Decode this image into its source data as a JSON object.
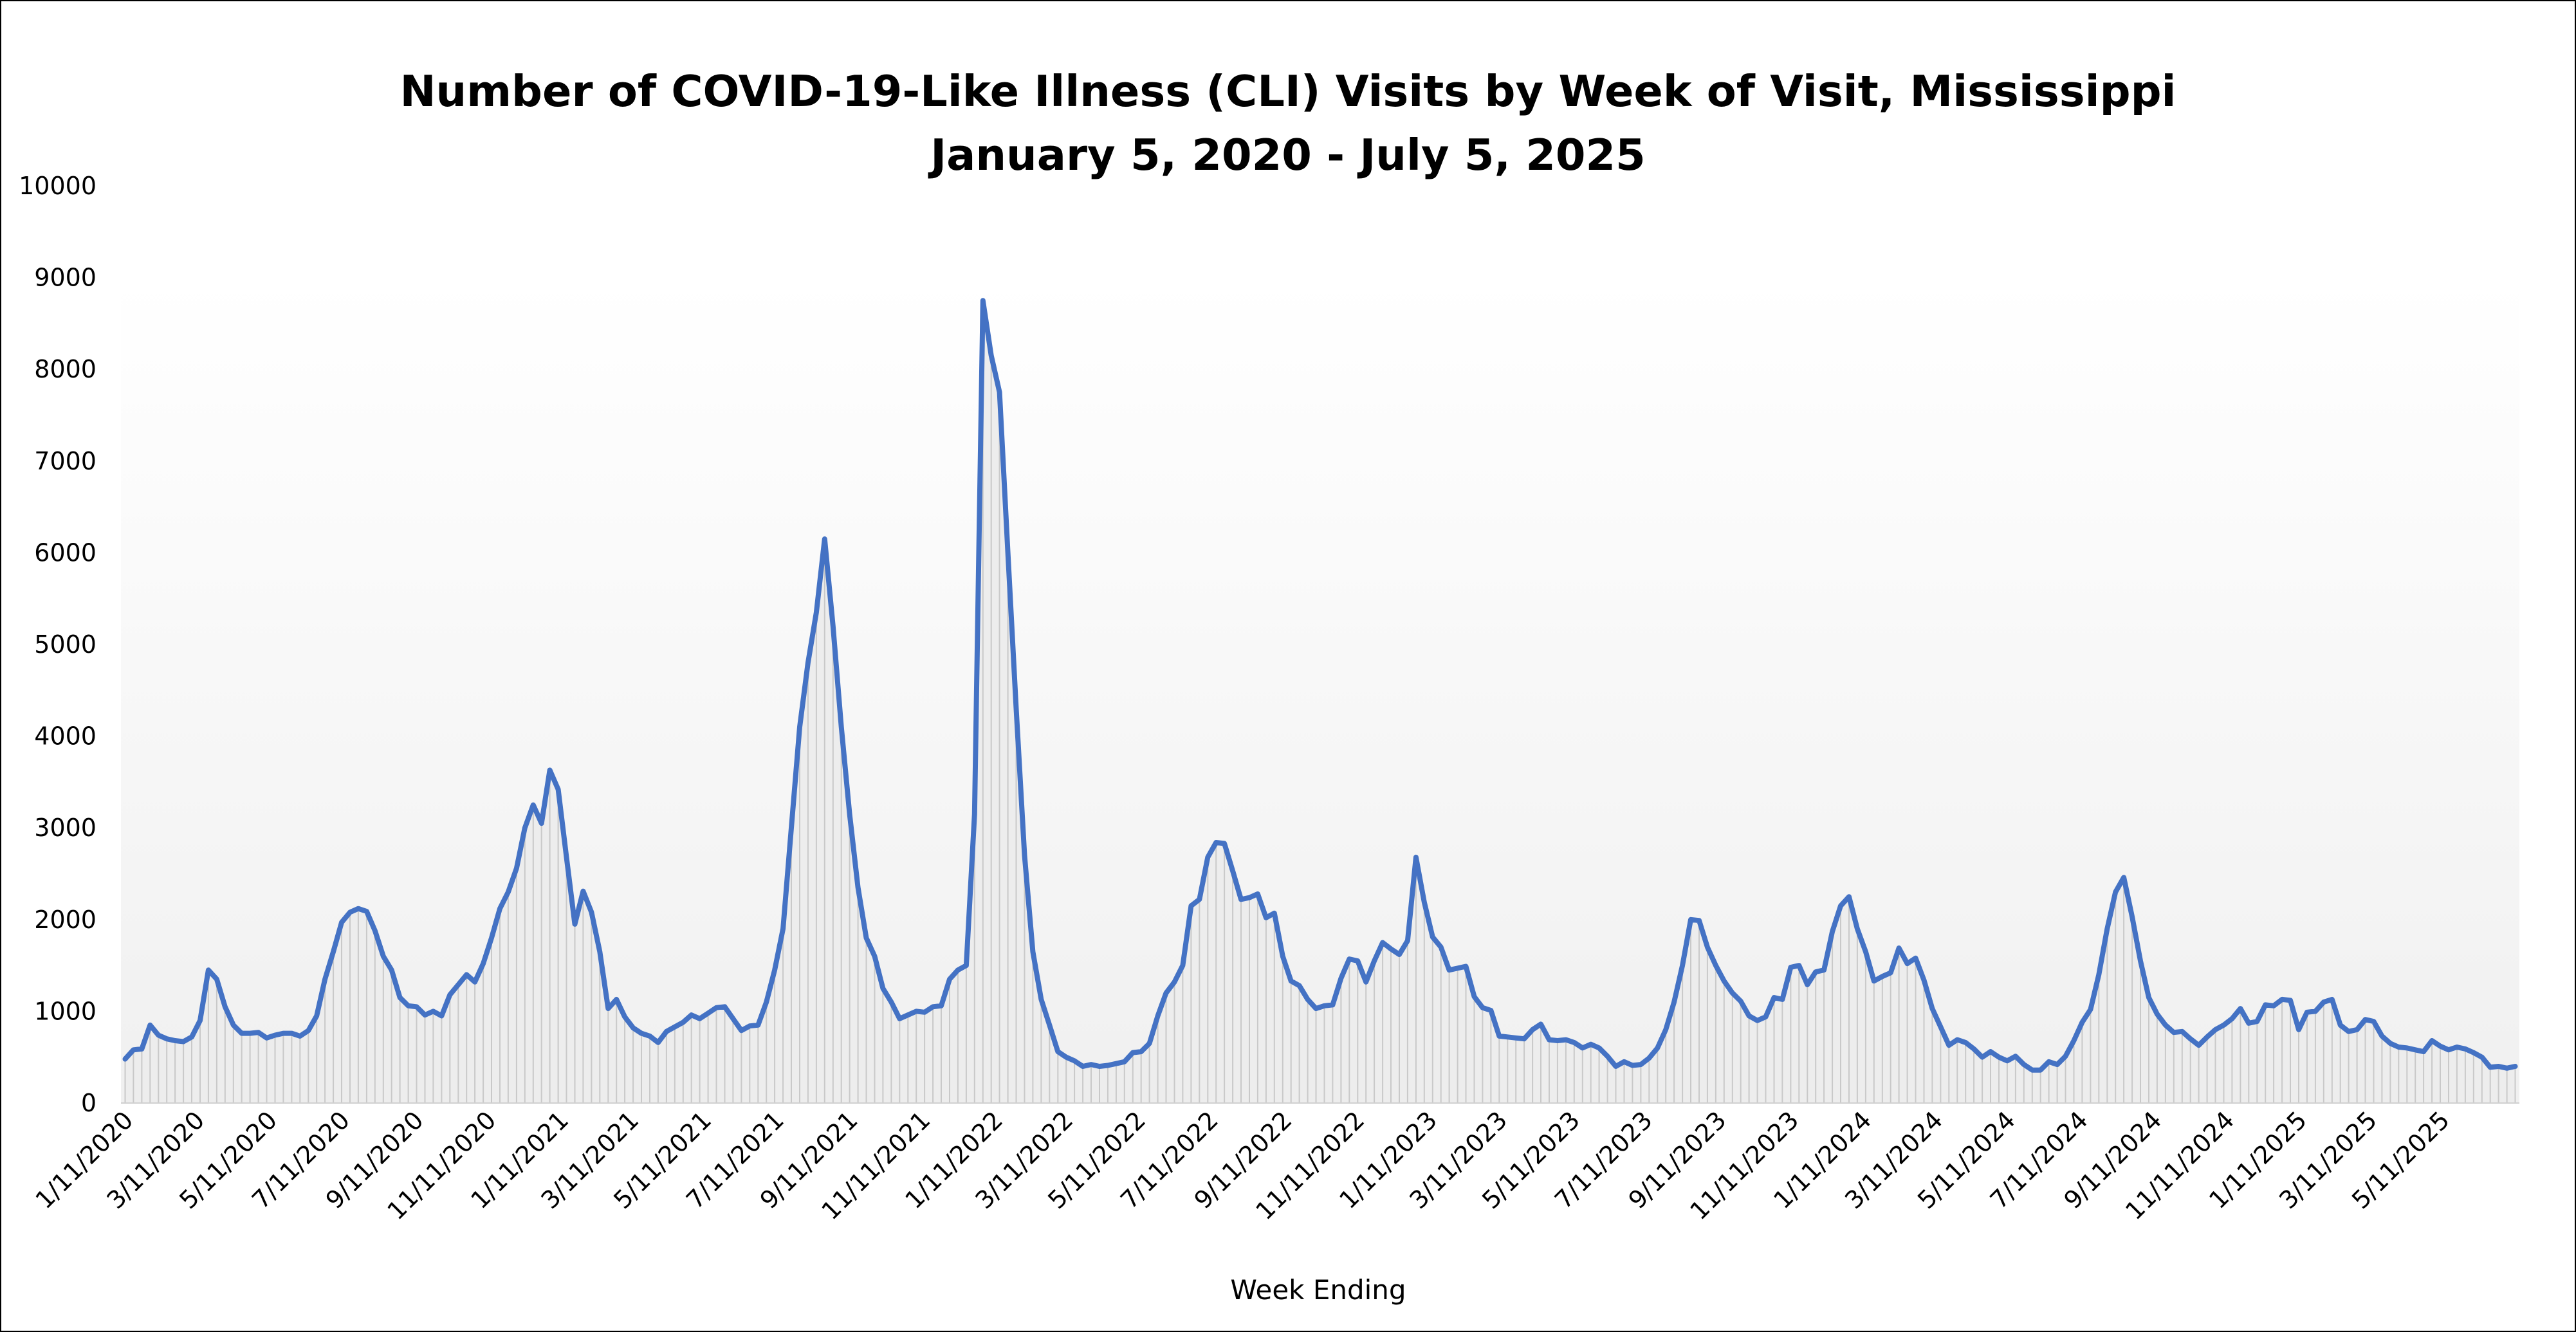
{
  "chart_data": {
    "type": "line",
    "title": "Number of COVID-19-Like Illness (CLI) Visits by Week of Visit, Mississippi",
    "subtitle": "January 5, 2020 - July 5, 2025",
    "xlabel": "Week Ending",
    "ylabel": "",
    "ylim": [
      0,
      10000
    ],
    "y_ticks": [
      "0",
      "1000",
      "2000",
      "3000",
      "4000",
      "5000",
      "6000",
      "7000",
      "8000",
      "9000",
      "10000"
    ],
    "x_tick_labels": [
      "1/11/2020",
      "3/11/2020",
      "5/11/2020",
      "7/11/2020",
      "9/11/2020",
      "11/11/2020",
      "1/11/2021",
      "3/11/2021",
      "5/11/2021",
      "7/11/2021",
      "9/11/2021",
      "11/11/2021",
      "1/11/2022",
      "3/11/2022",
      "5/11/2022",
      "7/11/2022",
      "9/11/2022",
      "11/11/2022",
      "1/11/2023",
      "3/11/2023",
      "5/11/2023",
      "7/11/2023",
      "9/11/2023",
      "11/11/2023",
      "1/11/2024",
      "3/11/2024",
      "5/11/2024",
      "7/11/2024",
      "9/11/2024",
      "11/11/2024",
      "1/11/2025",
      "3/11/2025",
      "5/11/2025"
    ],
    "x_start": "1/5/2020",
    "x_end": "7/5/2025",
    "line_color": "#4472C4",
    "area_fill": "#ededed",
    "grid": false,
    "legend": "none",
    "series": [
      {
        "values": [
          480,
          580,
          590,
          850,
          740,
          700,
          680,
          670,
          720,
          900,
          1450,
          1350,
          1050,
          850,
          760,
          760,
          770,
          710,
          740,
          760,
          760,
          730,
          790,
          950,
          1350,
          1650,
          1970,
          2080,
          2120,
          2090,
          1880,
          1600,
          1450,
          1150,
          1060,
          1050,
          960,
          1000,
          950,
          1180,
          1290,
          1400,
          1320,
          1520,
          1800,
          2120,
          2300,
          2560,
          3000,
          3250,
          3050,
          3630,
          3420,
          2680,
          1950,
          2310,
          2080,
          1650,
          1030,
          1130,
          940,
          820,
          760,
          730,
          660,
          780,
          830,
          880,
          960,
          920,
          980,
          1040,
          1050,
          920,
          790,
          840,
          850,
          1100,
          1450,
          1900,
          3000,
          4100,
          4800,
          5350,
          6150,
          5200,
          4100,
          3150,
          2350,
          1800,
          1600,
          1250,
          1100,
          920,
          960,
          1000,
          990,
          1050,
          1060,
          1350,
          1450,
          1500,
          3150,
          8750,
          8150,
          7750,
          6000,
          4300,
          2700,
          1650,
          1130,
          850,
          560,
          500,
          460,
          400,
          420,
          400,
          410,
          430,
          450,
          550,
          560,
          650,
          950,
          1200,
          1320,
          1500,
          2150,
          2220,
          2680,
          2840,
          2830,
          2530,
          2220,
          2240,
          2280,
          2020,
          2070,
          1600,
          1330,
          1280,
          1130,
          1030,
          1060,
          1070,
          1360,
          1570,
          1550,
          1320,
          1550,
          1750,
          1680,
          1620,
          1770,
          2680,
          2190,
          1810,
          1700,
          1450,
          1470,
          1490,
          1160,
          1040,
          1010,
          730,
          720,
          710,
          700,
          800,
          860,
          690,
          680,
          690,
          660,
          600,
          640,
          600,
          510,
          400,
          450,
          410,
          420,
          490,
          600,
          800,
          1100,
          1500,
          2000,
          1990,
          1700,
          1500,
          1330,
          1200,
          1110,
          950,
          900,
          940,
          1150,
          1130,
          1480,
          1500,
          1290,
          1430,
          1450,
          1870,
          2150,
          2250,
          1900,
          1650,
          1330,
          1380,
          1420,
          1690,
          1520,
          1580,
          1340,
          1030,
          830,
          630,
          690,
          660,
          590,
          500,
          560,
          500,
          460,
          510,
          420,
          360,
          360,
          450,
          420,
          510,
          680,
          880,
          1020,
          1400,
          1900,
          2300,
          2460,
          2030,
          1550,
          1150,
          970,
          850,
          770,
          780,
          700,
          630,
          720,
          800,
          850,
          920,
          1030,
          870,
          890,
          1070,
          1060,
          1130,
          1120,
          800,
          990,
          1000,
          1100,
          1130,
          850,
          780,
          800,
          910,
          890,
          730,
          650,
          610,
          600,
          580,
          560,
          680,
          620,
          580,
          610,
          590,
          550,
          500,
          390,
          400,
          380,
          400
        ]
      }
    ]
  }
}
